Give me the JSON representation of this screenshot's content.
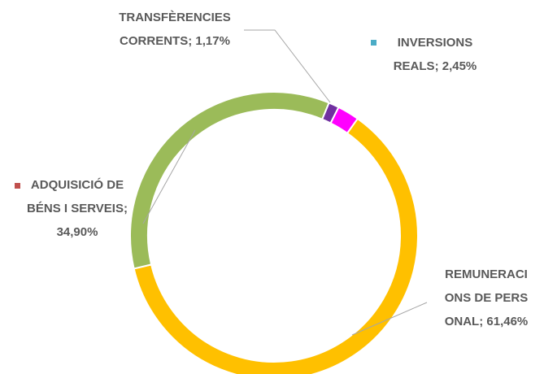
{
  "chart_data": {
    "type": "donut",
    "categories": [
      "REMUNERACIONS DE PERSONAL",
      "ADQUISICIÓ DE BÉNS I SERVEIS",
      "TRANSFÈRENCIES CORRENTS",
      "INVERSIONS REALS"
    ],
    "values": [
      61.46,
      34.9,
      1.17,
      2.45
    ],
    "value_labels": [
      "61,46%",
      "34,90%",
      "1,17%",
      "2,45%"
    ],
    "label_separator": ";",
    "colors": [
      "#ffc000",
      "#9bbb59",
      "#7030a0",
      "#ff00ff"
    ]
  }
}
